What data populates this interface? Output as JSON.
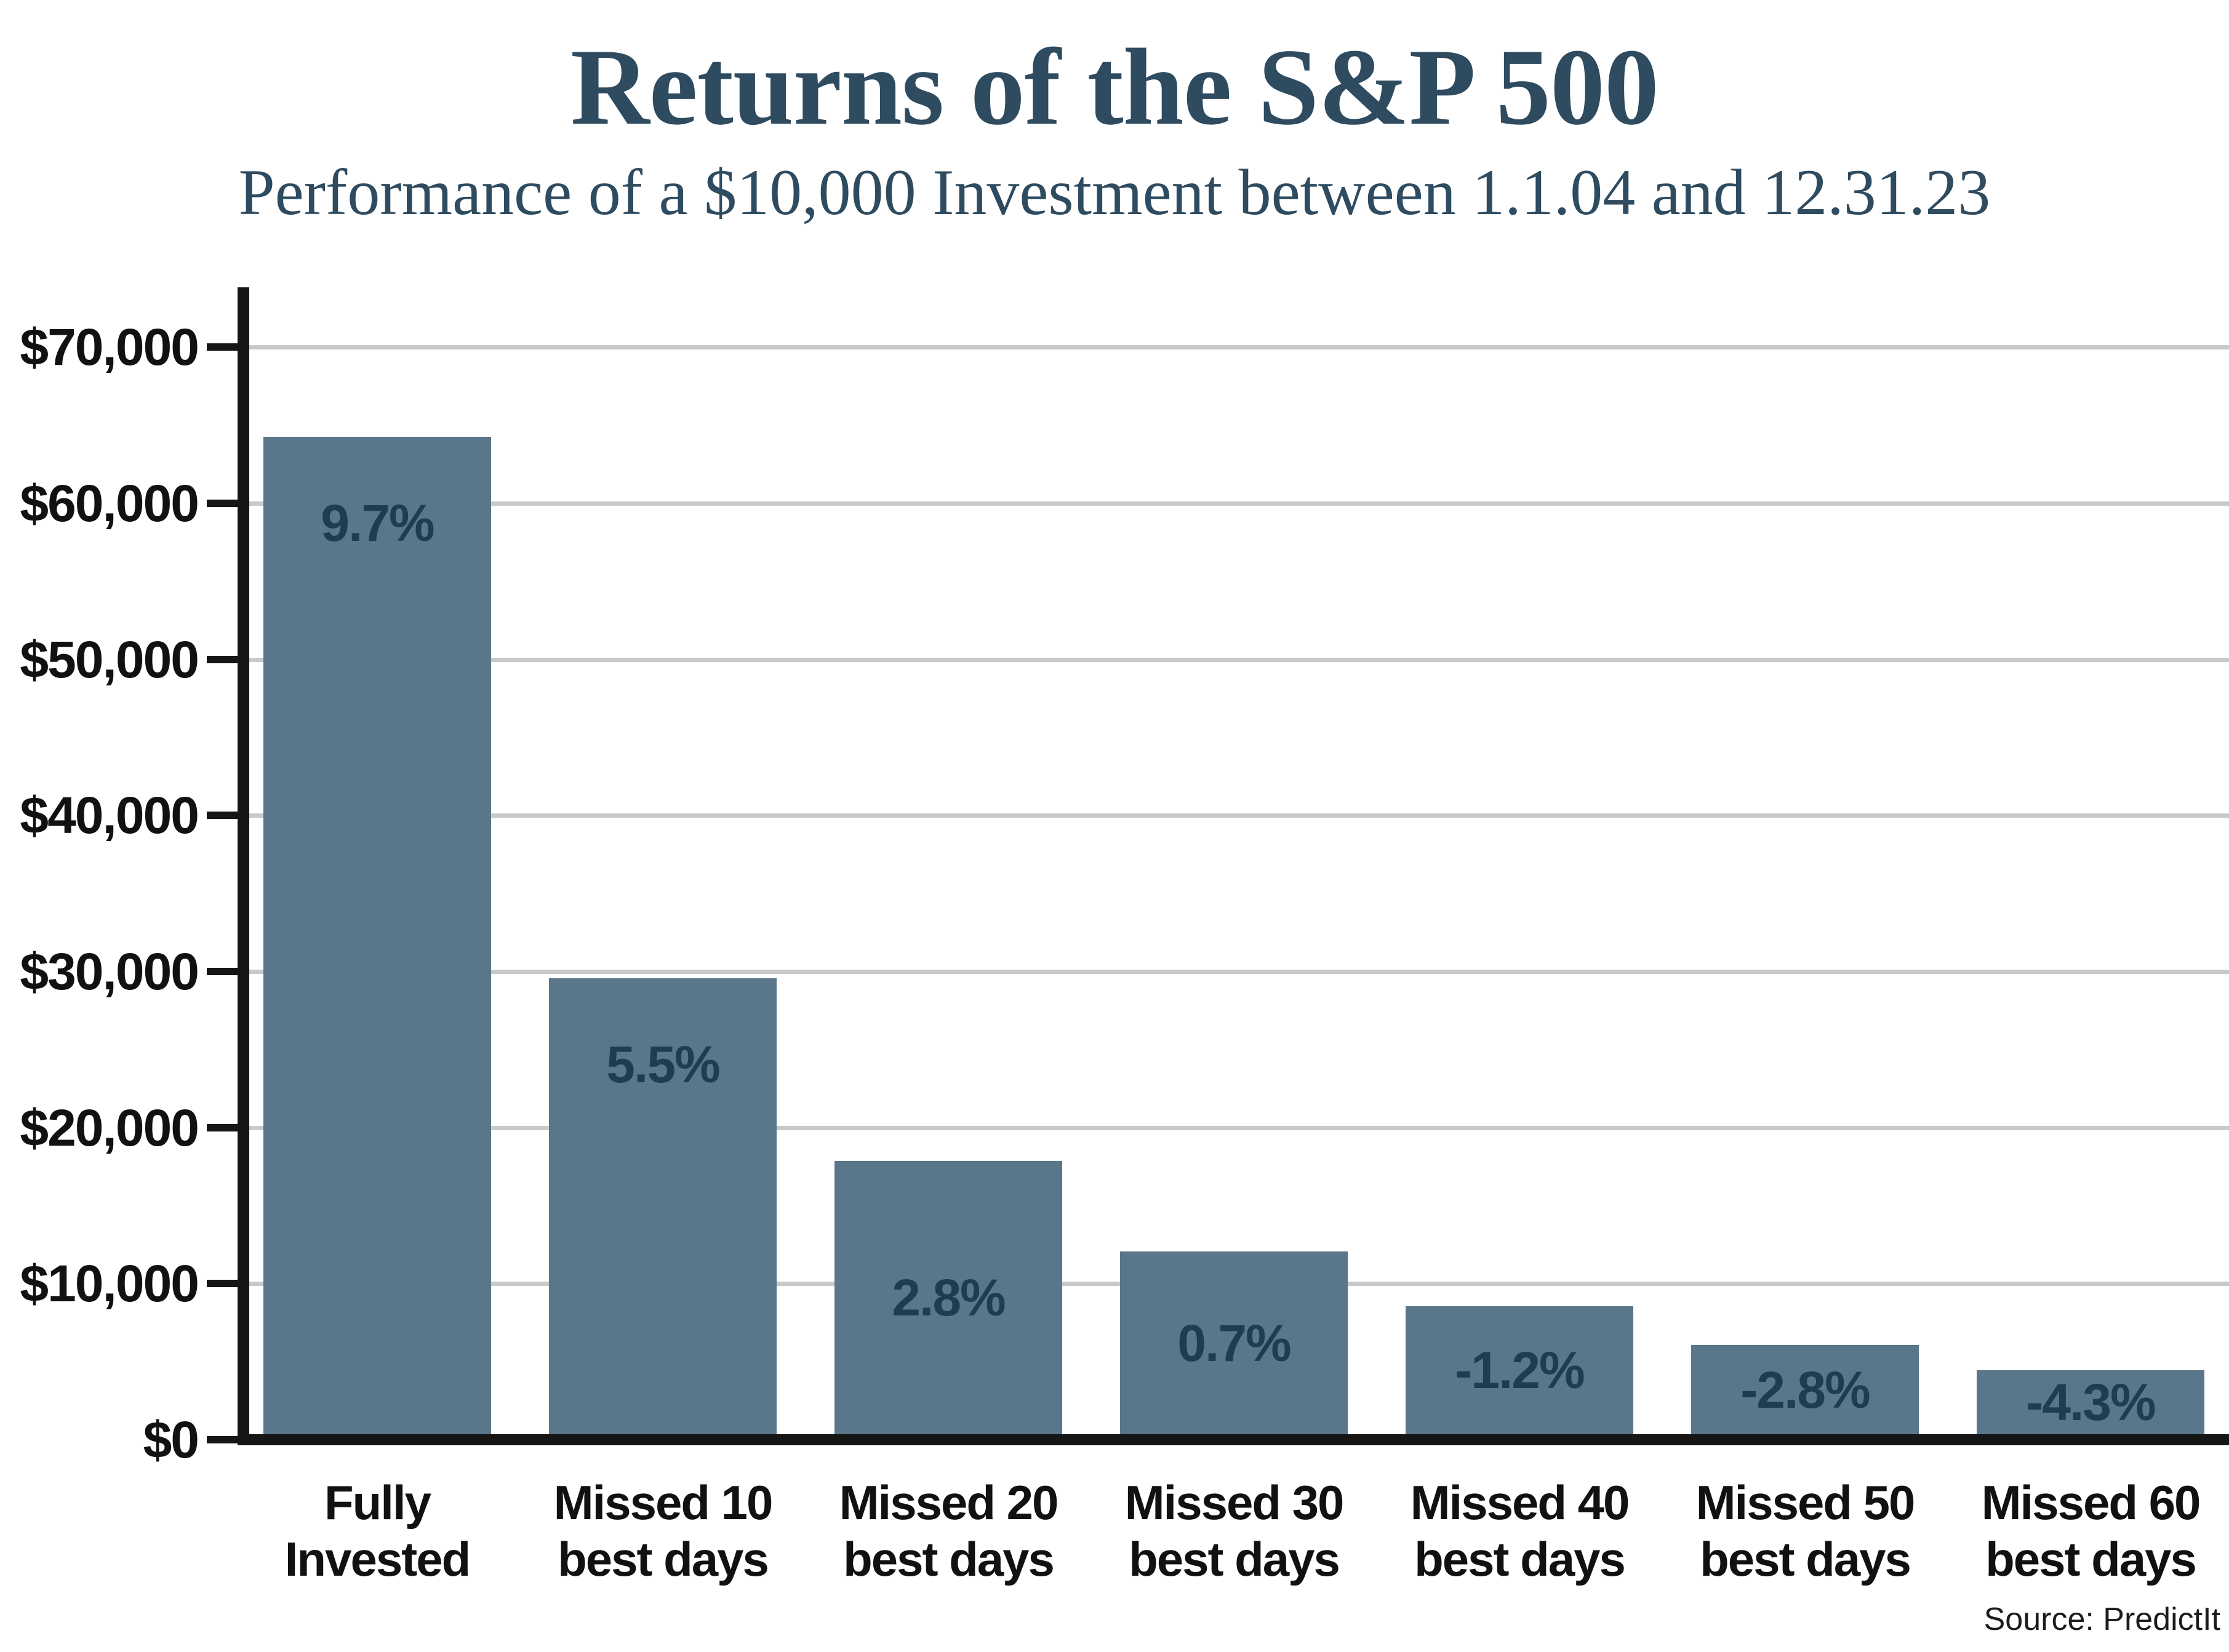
{
  "chart_data": {
    "type": "bar",
    "title": "Returns of the S&P 500",
    "subtitle": "Performance of a $10,000 Investment between 1.1.04 and 12.31.23",
    "source": "Source: PredictIt",
    "categories": [
      [
        "Fully",
        "Invested"
      ],
      [
        "Missed 10",
        "best days"
      ],
      [
        "Missed 20",
        "best days"
      ],
      [
        "Missed 30",
        "best days"
      ],
      [
        "Missed 40",
        "best days"
      ],
      [
        "Missed 50",
        "best days"
      ],
      [
        "Missed 60",
        "best days"
      ]
    ],
    "values": [
      63900,
      29200,
      17500,
      11700,
      8200,
      5700,
      4100
    ],
    "bar_labels": [
      "9.7%",
      "5.5%",
      "2.8%",
      "0.7%",
      "-1.2%",
      "-2.8%",
      "-4.3%"
    ],
    "y_tick_labels": [
      "$0",
      "$10,000",
      "$20,000",
      "$30,000",
      "$40,000",
      "$50,000",
      "$60,000",
      "$70,000"
    ],
    "ylim": [
      0,
      70000
    ],
    "ytick_step": 10000,
    "xlabel": "",
    "ylabel": "",
    "grid": "horizontal-gray-lines",
    "legend": "none",
    "colors": {
      "background": "#ffffff",
      "bar": "#59768a",
      "bar_label": "#1e3c52",
      "title": "#2e4b60",
      "axis": "#161616",
      "tick_label": "#111111",
      "gridline": "#c9c9c9"
    }
  }
}
